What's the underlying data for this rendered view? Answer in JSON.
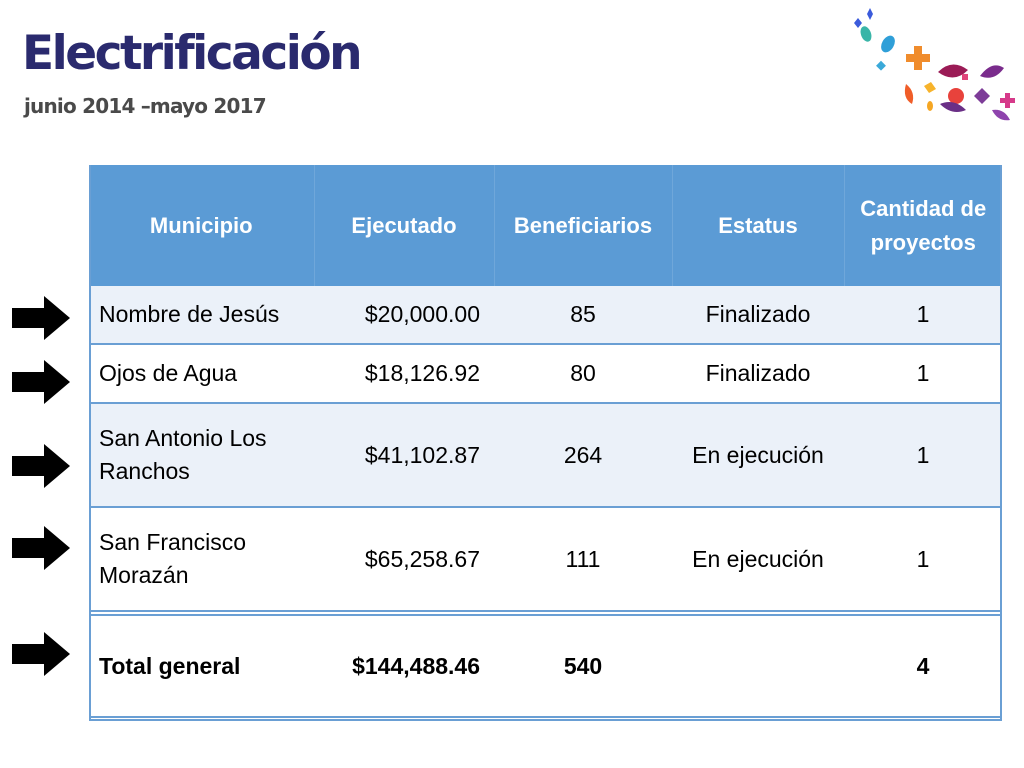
{
  "header": {
    "title": "Electrificación",
    "subtitle": "junio 2014 –mayo 2017"
  },
  "table": {
    "columns": [
      "Municipio",
      "Ejecutado",
      "Beneficiarios",
      "Estatus",
      "Cantidad de proyectos"
    ],
    "rows": [
      {
        "municipio": "Nombre de Jesús",
        "ejecutado": "$20,000.00",
        "beneficiarios": "85",
        "estatus": "Finalizado",
        "cantidad": "1"
      },
      {
        "municipio": "Ojos de Agua",
        "ejecutado": "$18,126.92",
        "beneficiarios": "80",
        "estatus": "Finalizado",
        "cantidad": "1"
      },
      {
        "municipio": "San Antonio Los Ranchos",
        "ejecutado": "$41,102.87",
        "beneficiarios": "264",
        "estatus": "En ejecución",
        "cantidad": "1"
      },
      {
        "municipio": "San Francisco Morazán",
        "ejecutado": "$65,258.67",
        "beneficiarios": "111",
        "estatus": "En ejecución",
        "cantidad": "1"
      }
    ],
    "total": {
      "municipio": "Total general",
      "ejecutado": "$144,488.46",
      "beneficiarios": "540",
      "estatus": "",
      "cantidad": "4"
    }
  },
  "colors": {
    "header_fill": "#5b9bd5",
    "title": "#2a2a6e",
    "row_band": "#ebf1f9"
  },
  "icons": [
    "arrow-right-icon",
    "confetti-decoration"
  ]
}
